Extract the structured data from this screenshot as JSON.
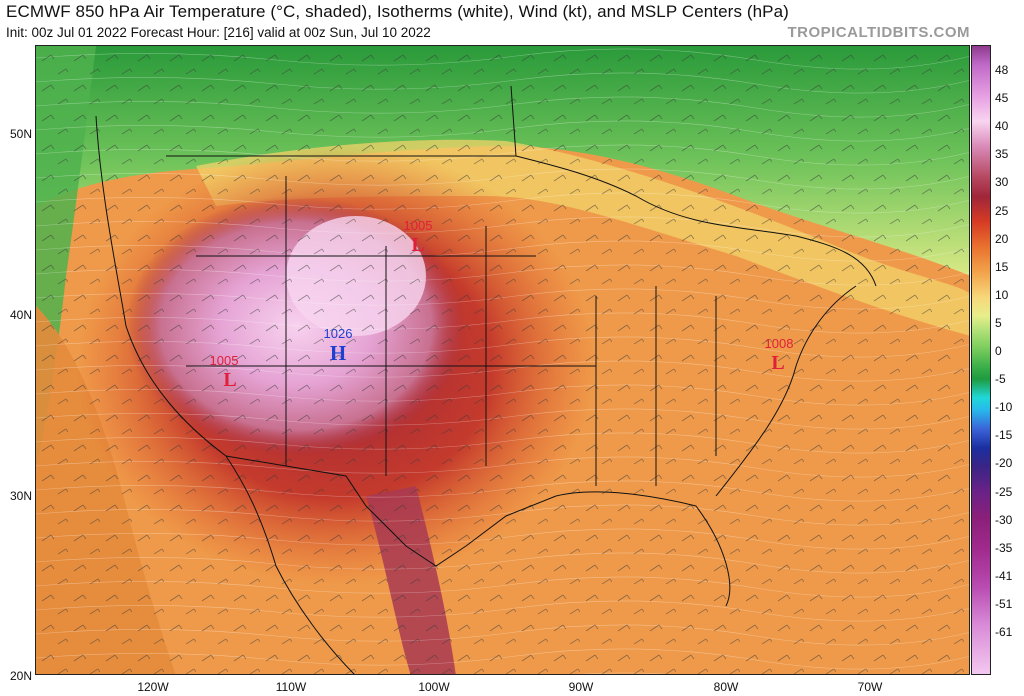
{
  "header": {
    "title": "ECMWF 850 hPa Air Temperature (°C, shaded), Isotherms (white), Wind (kt), and MSLP Centers (hPa)",
    "subtitle": "Init: 00z Jul 01 2022   Forecast Hour: [216]   valid at 00z Sun, Jul 10 2022",
    "brand": "TROPICALTIDBITS.COM"
  },
  "latitude_labels": [
    "50N",
    "40N",
    "30N",
    "20N"
  ],
  "longitude_labels": [
    "120W",
    "110W",
    "100W",
    "90W",
    "80W",
    "70W"
  ],
  "colorbar": {
    "labels": [
      "48",
      "45",
      "40",
      "35",
      "30",
      "25",
      "20",
      "15",
      "10",
      "5",
      "0",
      "-5",
      "-10",
      "-15",
      "-20",
      "-25",
      "-30",
      "-35",
      "-41",
      "-51",
      "-61"
    ]
  },
  "pressure_centers": [
    {
      "type": "L",
      "value": "1005",
      "color": "#e0203a",
      "region": "Nevada"
    },
    {
      "type": "L",
      "value": "1005",
      "color": "#e0203a",
      "region": "South Dakota"
    },
    {
      "type": "H",
      "value": "1026",
      "color": "#1f3fd0",
      "region": "Colorado"
    },
    {
      "type": "L",
      "value": "1008",
      "color": "#e0203a",
      "region": "Mid-Atlantic coast"
    }
  ],
  "colors": {
    "warm_core": "#f5c3ea",
    "hot": "#a8273f",
    "warm": "#e86f2f",
    "mild": "#f3a456",
    "cool_green": "#3aa84a",
    "deep_green": "#2a9a3a",
    "low_marker": "#e0203a",
    "high_marker": "#1f3fd0"
  }
}
